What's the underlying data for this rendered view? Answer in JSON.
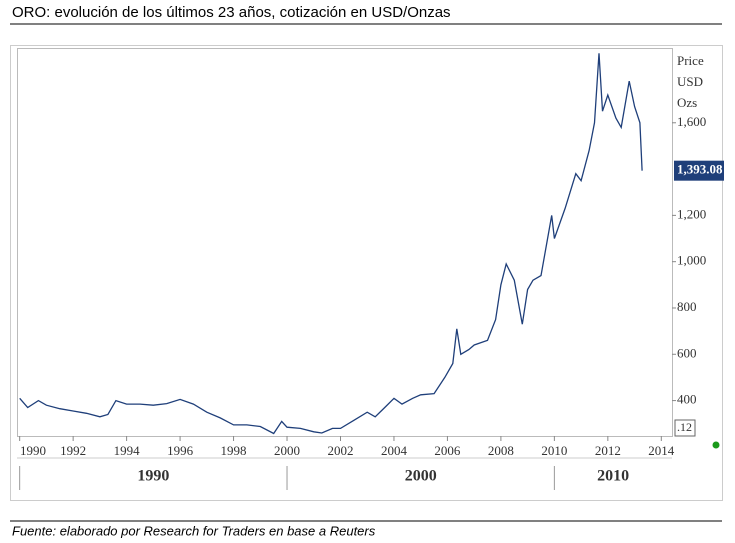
{
  "chart_data": {
    "type": "line",
    "title": "ORO: evolución de los últimos 23 años, cotización en USD/Onzas",
    "y_label": [
      "Price",
      "USD",
      "Ozs"
    ],
    "end_label": "1,393.08",
    "corner_label": ".12",
    "decade_labels": [
      "1990",
      "2000",
      "2010"
    ],
    "source": "Fuente: elaborado por Research for Traders en base a Reuters",
    "x": [
      1990.0,
      1990.3,
      1990.7,
      1991.0,
      1991.5,
      1992.0,
      1992.5,
      1993.0,
      1993.3,
      1993.6,
      1994.0,
      1994.5,
      1995.0,
      1995.5,
      1996.0,
      1996.5,
      1997.0,
      1997.5,
      1998.0,
      1998.5,
      1999.0,
      1999.5,
      1999.8,
      2000.0,
      2000.5,
      2001.0,
      2001.3,
      2001.7,
      2002.0,
      2002.5,
      2003.0,
      2003.3,
      2003.7,
      2004.0,
      2004.3,
      2004.7,
      2005.0,
      2005.5,
      2005.9,
      2006.2,
      2006.35,
      2006.5,
      2006.8,
      2007.0,
      2007.5,
      2007.8,
      2008.0,
      2008.2,
      2008.5,
      2008.8,
      2009.0,
      2009.2,
      2009.5,
      2009.9,
      2010.0,
      2010.4,
      2010.8,
      2011.0,
      2011.3,
      2011.5,
      2011.67,
      2011.8,
      2012.0,
      2012.3,
      2012.5,
      2012.8,
      2013.0,
      2013.2,
      2013.28
    ],
    "series": [
      {
        "color": "#1f3f7a",
        "values": [
          410,
          370,
          400,
          380,
          365,
          355,
          345,
          330,
          340,
          400,
          385,
          385,
          380,
          387,
          405,
          385,
          350,
          325,
          295,
          295,
          288,
          258,
          310,
          285,
          280,
          265,
          260,
          280,
          280,
          315,
          350,
          330,
          375,
          410,
          385,
          410,
          425,
          430,
          500,
          560,
          710,
          600,
          620,
          640,
          660,
          750,
          900,
          990,
          920,
          730,
          880,
          920,
          940,
          1200,
          1100,
          1230,
          1380,
          1350,
          1480,
          1600,
          1900,
          1650,
          1720,
          1620,
          1580,
          1780,
          1670,
          1600,
          1393.08
        ]
      }
    ],
    "xlim": [
      1989.9,
      2014.4
    ],
    "xticks": [
      1990,
      1992,
      1994,
      1996,
      1998,
      2000,
      2002,
      2004,
      2006,
      2008,
      2010,
      2012,
      2014
    ],
    "ylim": [
      247,
      1923
    ],
    "yticks": [
      400,
      600,
      800,
      {
        "value": 1000,
        "label": "1,000"
      },
      {
        "value": 1200,
        "label": "1,200"
      },
      {
        "value": 1600,
        "label": "1,600"
      }
    ],
    "grid": false
  }
}
